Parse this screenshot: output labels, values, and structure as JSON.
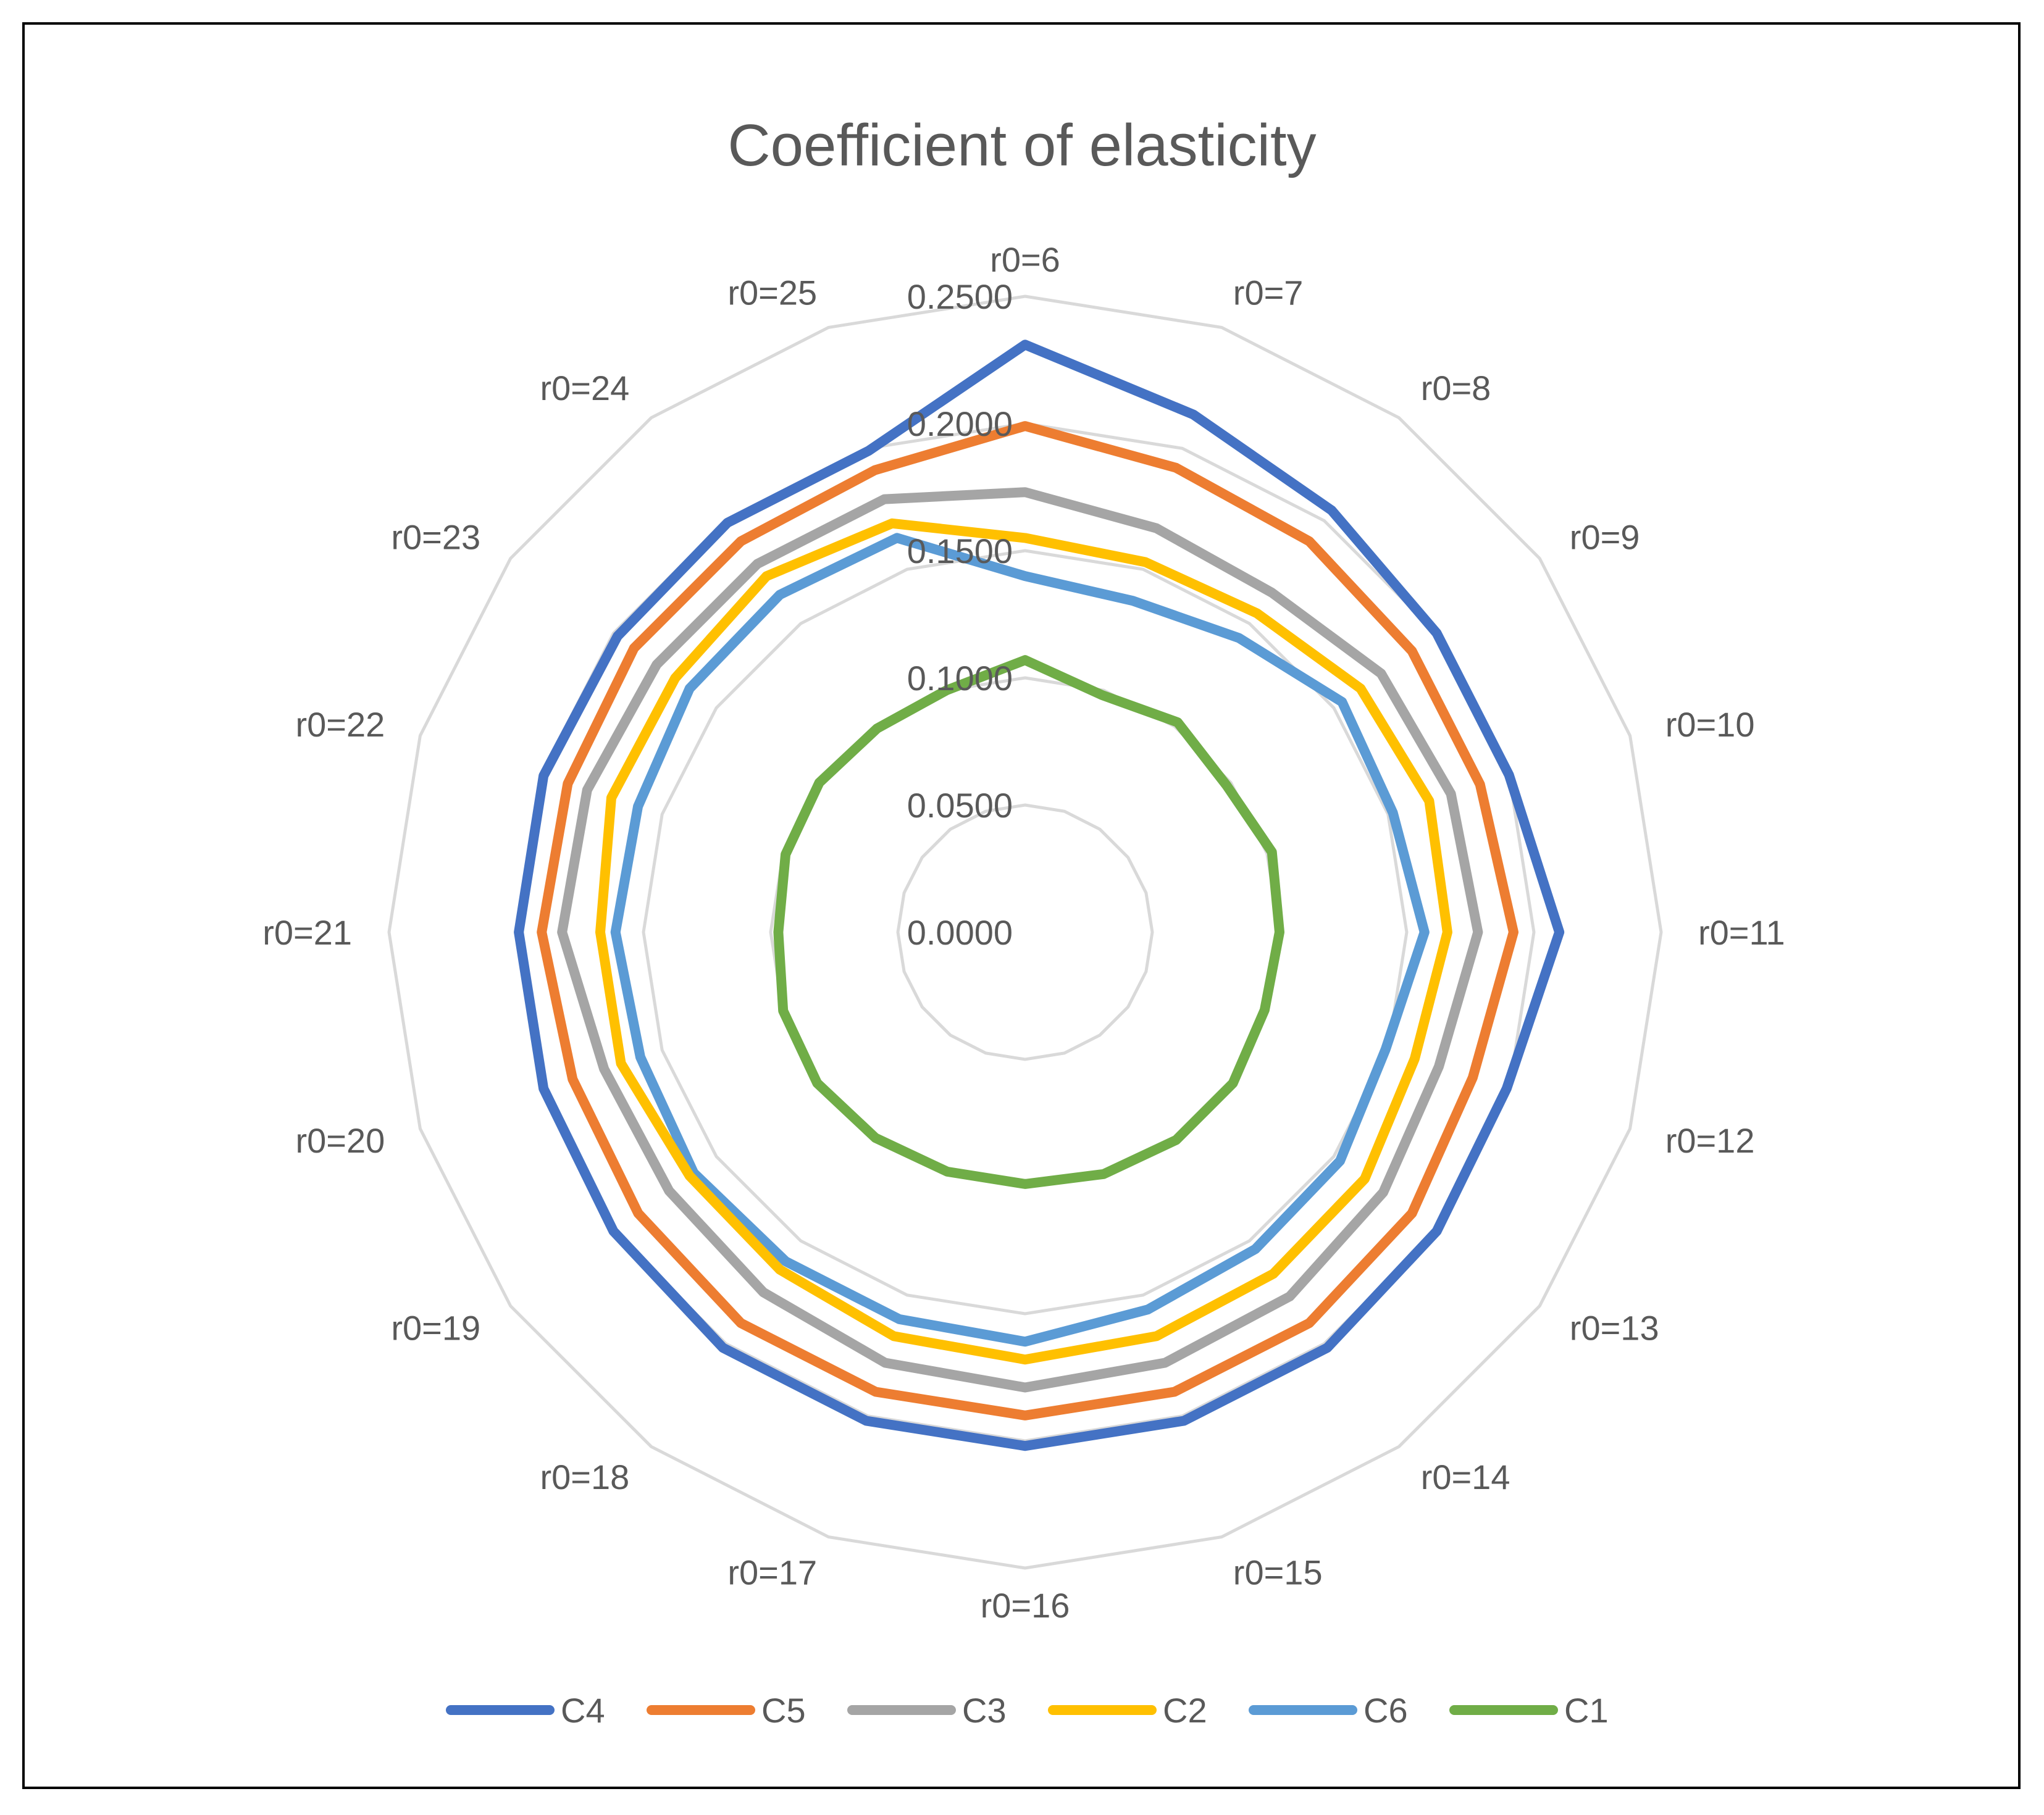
{
  "chart_data": {
    "type": "radar",
    "title": "Coefficient of elasticity",
    "categories": [
      "r0=6",
      "r0=7",
      "r0=8",
      "r0=9",
      "r0=10",
      "r0=11",
      "r0=12",
      "r0=13",
      "r0=14",
      "r0=15",
      "r0=16",
      "r0=17",
      "r0=18",
      "r0=19",
      "r0=20",
      "r0=21",
      "r0=22",
      "r0=23",
      "r0=24",
      "r0=25"
    ],
    "radial_ticks": [
      "0.0000",
      "0.0500",
      "0.1000",
      "0.1500",
      "0.2000",
      "0.2500"
    ],
    "rlim": [
      0,
      0.25
    ],
    "grid": true,
    "legend_position": "bottom",
    "series": [
      {
        "name": "C4",
        "color": "#4472C4",
        "values": [
          0.231,
          0.214,
          0.205,
          0.2,
          0.2,
          0.21,
          0.199,
          0.2,
          0.202,
          0.202,
          0.202,
          0.202,
          0.202,
          0.2,
          0.199,
          0.199,
          0.199,
          0.198,
          0.199,
          0.199
        ]
      },
      {
        "name": "C5",
        "color": "#ED7D31",
        "values": [
          0.199,
          0.192,
          0.19,
          0.188,
          0.188,
          0.192,
          0.185,
          0.188,
          0.19,
          0.19,
          0.19,
          0.19,
          0.19,
          0.188,
          0.187,
          0.19,
          0.189,
          0.19,
          0.19,
          0.191
        ]
      },
      {
        "name": "C3",
        "color": "#A5A5A5",
        "values": [
          0.173,
          0.167,
          0.165,
          0.173,
          0.176,
          0.178,
          0.171,
          0.174,
          0.177,
          0.178,
          0.179,
          0.178,
          0.175,
          0.173,
          0.174,
          0.182,
          0.181,
          0.179,
          0.179,
          0.179
        ]
      },
      {
        "name": "C2",
        "color": "#FFC000",
        "values": [
          0.155,
          0.153,
          0.155,
          0.163,
          0.167,
          0.166,
          0.161,
          0.165,
          0.166,
          0.167,
          0.168,
          0.167,
          0.164,
          0.163,
          0.167,
          0.167,
          0.171,
          0.17,
          0.173,
          0.169
        ]
      },
      {
        "name": "C6",
        "color": "#5B9BD5",
        "values": [
          0.14,
          0.137,
          0.143,
          0.154,
          0.152,
          0.157,
          0.149,
          0.153,
          0.154,
          0.156,
          0.161,
          0.16,
          0.16,
          0.161,
          0.159,
          0.161,
          0.16,
          0.163,
          0.164,
          0.163
        ]
      },
      {
        "name": "C1",
        "color": "#70AD47",
        "values": [
          0.107,
          0.098,
          0.102,
          0.098,
          0.102,
          0.1,
          0.099,
          0.101,
          0.101,
          0.1,
          0.099,
          0.099,
          0.1,
          0.101,
          0.1,
          0.097,
          0.099,
          0.1,
          0.099,
          0.1
        ]
      }
    ]
  }
}
